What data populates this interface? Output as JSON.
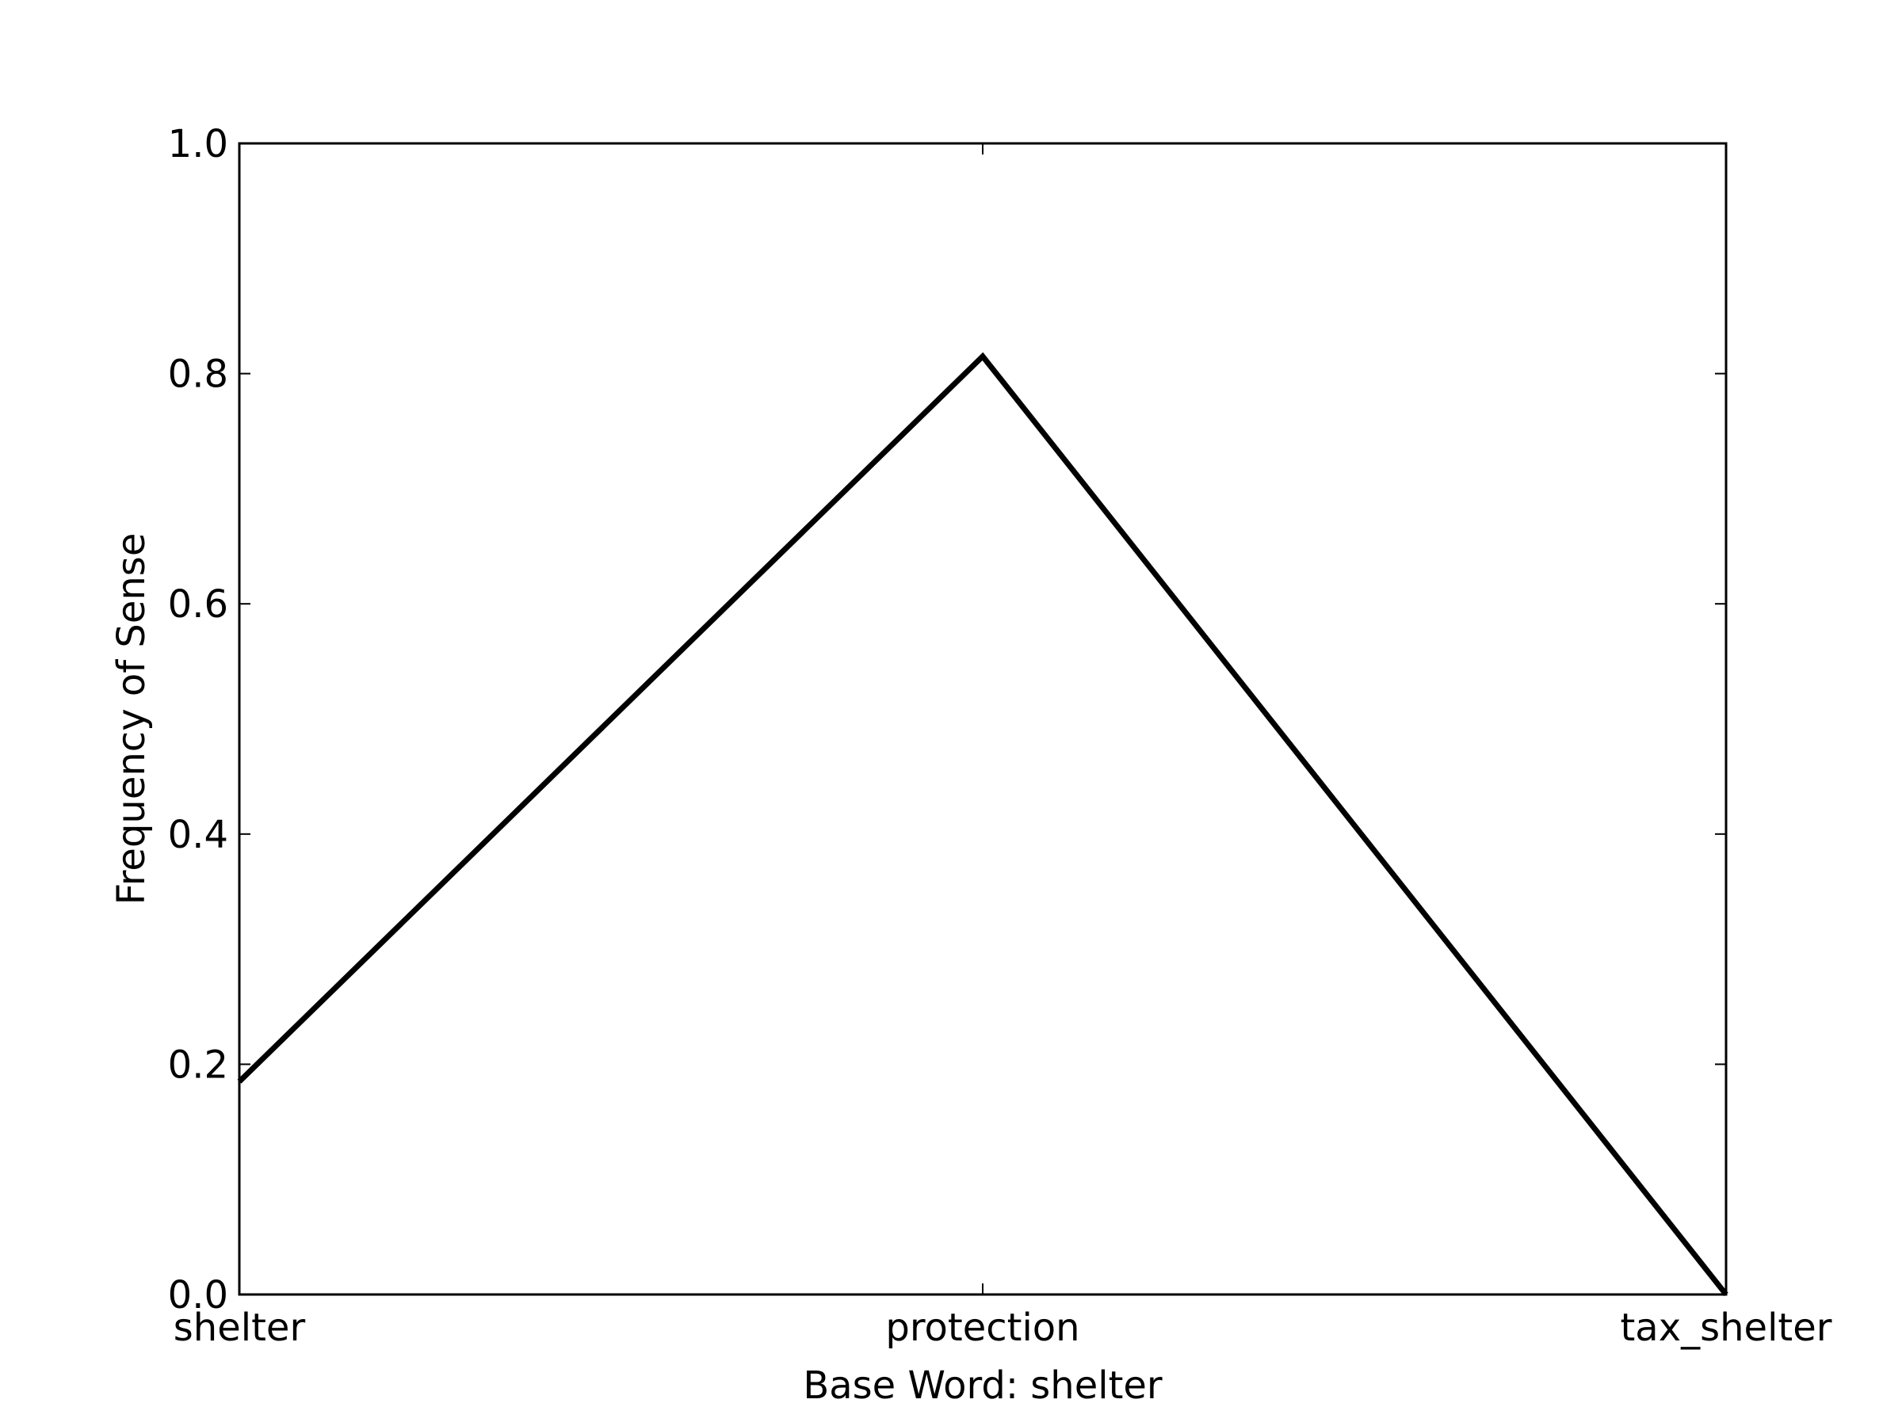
{
  "chart_data": {
    "type": "line",
    "title": "",
    "xlabel": "Base Word: shelter",
    "ylabel": "Frequency of Sense",
    "categories": [
      "shelter",
      "protection",
      "tax_shelter"
    ],
    "series": [
      {
        "values": [
          0.185,
          0.815,
          0.0
        ]
      }
    ],
    "ylim": [
      0,
      1
    ],
    "yticks": [
      "0.0",
      "0.2",
      "0.4",
      "0.6",
      "0.8",
      "1.0"
    ],
    "grid": false,
    "legend": "none",
    "colors": {
      "line": "#000000",
      "axes": "#000000",
      "background": "#ffffff"
    }
  }
}
